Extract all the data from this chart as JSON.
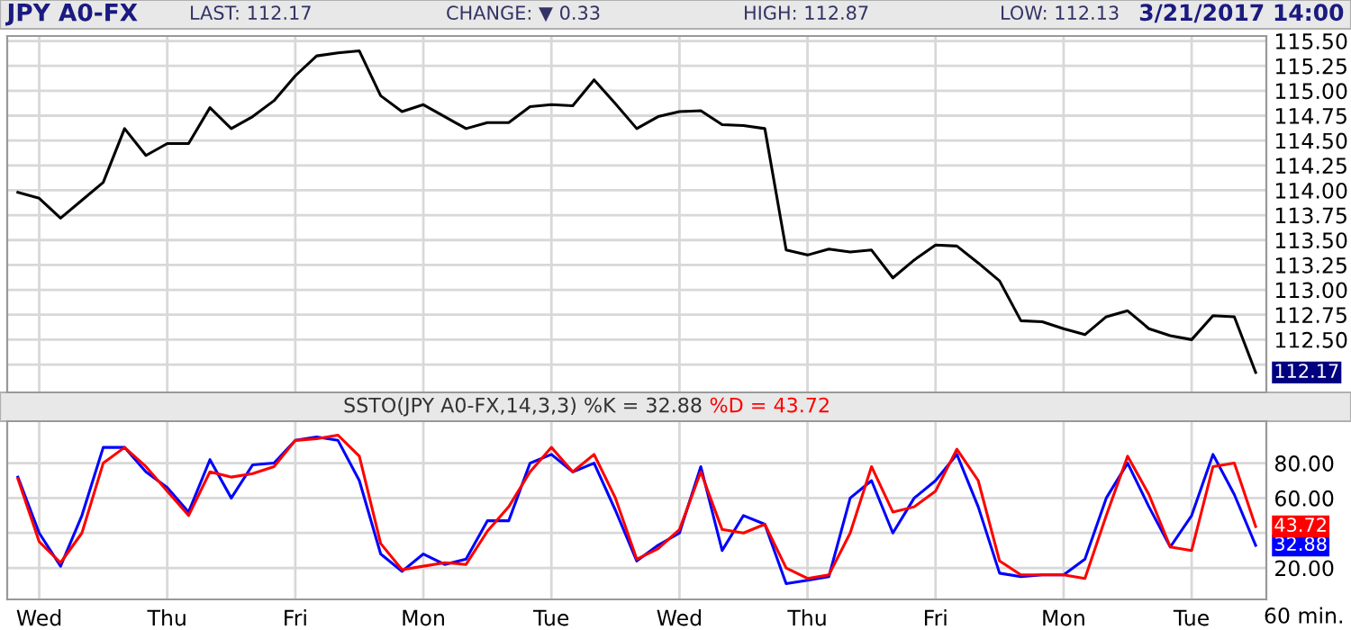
{
  "chart_data": [
    {
      "type": "line",
      "title": "JPY A0-FX",
      "annotations": [
        "LAST: 112.17",
        "CHANGE: ▼ 0.33",
        "HIGH: 112.87",
        "LOW: 112.13",
        "3/21/2017 14:00"
      ],
      "categories": [
        null,
        null,
        null,
        null,
        null,
        null,
        null,
        null,
        null,
        null,
        null,
        null,
        null,
        null,
        null,
        null,
        null,
        null,
        null,
        null,
        null,
        null,
        null,
        null,
        null,
        null,
        null,
        null,
        null,
        null,
        null,
        null,
        null,
        null,
        null,
        null,
        null,
        null,
        null,
        null,
        null,
        null,
        null,
        null,
        null,
        null,
        null,
        null,
        null,
        null,
        null,
        null,
        null,
        null,
        null,
        null,
        null,
        null,
        null
      ],
      "series": [
        {
          "color": "#000000",
          "values": [
            113.98,
            113.92,
            113.72,
            113.9,
            114.08,
            114.62,
            114.35,
            114.47,
            114.47,
            114.83,
            114.62,
            114.74,
            114.9,
            115.15,
            115.35,
            115.38,
            115.4,
            114.95,
            114.79,
            114.86,
            114.74,
            114.62,
            114.68,
            114.68,
            114.84,
            114.86,
            114.85,
            115.11,
            114.87,
            114.62,
            114.74,
            114.79,
            114.8,
            114.66,
            114.65,
            114.62,
            113.4,
            113.35,
            113.41,
            113.38,
            113.4,
            113.12,
            113.3,
            113.45,
            113.44,
            113.27,
            113.09,
            112.69,
            112.68,
            112.61,
            112.55,
            112.73,
            112.79,
            112.61,
            112.54,
            112.5,
            112.74,
            112.73,
            112.17
          ],
          "value_labels": [
            null,
            null,
            null,
            null,
            null,
            null,
            null,
            null,
            null,
            null,
            null,
            null,
            null,
            null,
            null,
            null,
            null,
            null,
            null,
            null,
            null,
            null,
            null,
            null,
            null,
            null,
            null,
            null,
            null,
            null,
            null,
            null,
            null,
            null,
            null,
            null,
            null,
            null,
            null,
            null,
            null,
            null,
            null,
            null,
            null,
            null,
            null,
            null,
            null,
            null,
            null,
            null,
            null,
            null,
            null,
            null,
            null,
            null,
            "112.17"
          ]
        }
      ],
      "ylim": [
        111.97,
        115.55
      ],
      "yticks": [
        {
          "value": 112.25,
          "label": null
        },
        {
          "value": 112.5,
          "label": "112.50"
        },
        {
          "value": 112.75,
          "label": "112.75"
        },
        {
          "value": 113.0,
          "label": "113.00"
        },
        {
          "value": 113.25,
          "label": "113.25"
        },
        {
          "value": 113.5,
          "label": "113.50"
        },
        {
          "value": 113.75,
          "label": "113.75"
        },
        {
          "value": 114.0,
          "label": "114.00"
        },
        {
          "value": 114.25,
          "label": "114.25"
        },
        {
          "value": 114.5,
          "label": "114.50"
        },
        {
          "value": 114.75,
          "label": "114.75"
        },
        {
          "value": 115.0,
          "label": "115.00"
        },
        {
          "value": 115.25,
          "label": "115.25"
        },
        {
          "value": 115.5,
          "label": "115.50"
        }
      ],
      "tick_labels": "y",
      "grid": true
    },
    {
      "type": "line",
      "title": "SSTO(JPY A0-FX,14,3,3) %K = 32.88",
      "xlabel": "60 min.",
      "categories": [
        null,
        "Wed",
        null,
        null,
        null,
        null,
        null,
        "Thu",
        null,
        null,
        null,
        null,
        null,
        "Fri",
        null,
        null,
        null,
        null,
        null,
        "Mon",
        null,
        null,
        null,
        null,
        null,
        "Tue",
        null,
        null,
        null,
        null,
        null,
        "Wed",
        null,
        null,
        null,
        null,
        null,
        "Thu",
        null,
        null,
        null,
        null,
        null,
        "Fri",
        null,
        null,
        null,
        null,
        null,
        "Mon",
        null,
        null,
        null,
        null,
        null,
        "Tue",
        null,
        null,
        null
      ],
      "series": [
        {
          "color": "#0000ff",
          "values": [
            72,
            40,
            21,
            50,
            89,
            89,
            75,
            66,
            52,
            82,
            60,
            79,
            80,
            93,
            95,
            93,
            70,
            28,
            18,
            28,
            22,
            25,
            47,
            47,
            80,
            85,
            75,
            80,
            53,
            24,
            33,
            40,
            78,
            30,
            50,
            45,
            11,
            13,
            15,
            60,
            70,
            40,
            60,
            70,
            85,
            55,
            17,
            15,
            16,
            16,
            25,
            60,
            80,
            55,
            32,
            50,
            85,
            62,
            32.88
          ],
          "value_labels": [
            null,
            null,
            null,
            null,
            null,
            null,
            null,
            null,
            null,
            null,
            null,
            null,
            null,
            null,
            null,
            null,
            null,
            null,
            null,
            null,
            null,
            null,
            null,
            null,
            null,
            null,
            null,
            null,
            null,
            null,
            null,
            null,
            null,
            null,
            null,
            null,
            null,
            null,
            null,
            null,
            null,
            null,
            null,
            null,
            null,
            null,
            null,
            null,
            null,
            null,
            null,
            null,
            null,
            null,
            null,
            null,
            null,
            null,
            "32.88"
          ]
        },
        {
          "name": "%D = 43.72",
          "color": "#ff0000",
          "values": [
            71,
            35,
            23,
            40,
            80,
            89,
            78,
            64,
            50,
            75,
            72,
            74,
            78,
            93,
            94,
            96,
            84,
            34,
            19,
            21,
            23,
            22,
            41,
            55,
            75,
            89,
            75,
            85,
            60,
            25,
            31,
            42,
            75,
            42,
            40,
            45,
            20,
            14,
            16,
            40,
            78,
            52,
            55,
            64,
            88,
            70,
            24,
            16,
            16,
            16,
            14,
            50,
            84,
            62,
            32,
            30,
            78,
            80,
            43.72
          ],
          "value_labels": [
            null,
            null,
            null,
            null,
            null,
            null,
            null,
            null,
            null,
            null,
            null,
            null,
            null,
            null,
            null,
            null,
            null,
            null,
            null,
            null,
            null,
            null,
            null,
            null,
            null,
            null,
            null,
            null,
            null,
            null,
            null,
            null,
            null,
            null,
            null,
            null,
            null,
            null,
            null,
            null,
            null,
            null,
            null,
            null,
            null,
            null,
            null,
            null,
            null,
            null,
            null,
            null,
            null,
            null,
            null,
            null,
            null,
            null,
            "43.72"
          ]
        }
      ],
      "ylim": [
        2,
        104
      ],
      "yticks": [
        {
          "value": 20,
          "label": "20.00"
        },
        {
          "value": 40,
          "label": null
        },
        {
          "value": 60,
          "label": "60.00"
        },
        {
          "value": 80,
          "label": "80.00"
        }
      ],
      "grid": true
    }
  ]
}
